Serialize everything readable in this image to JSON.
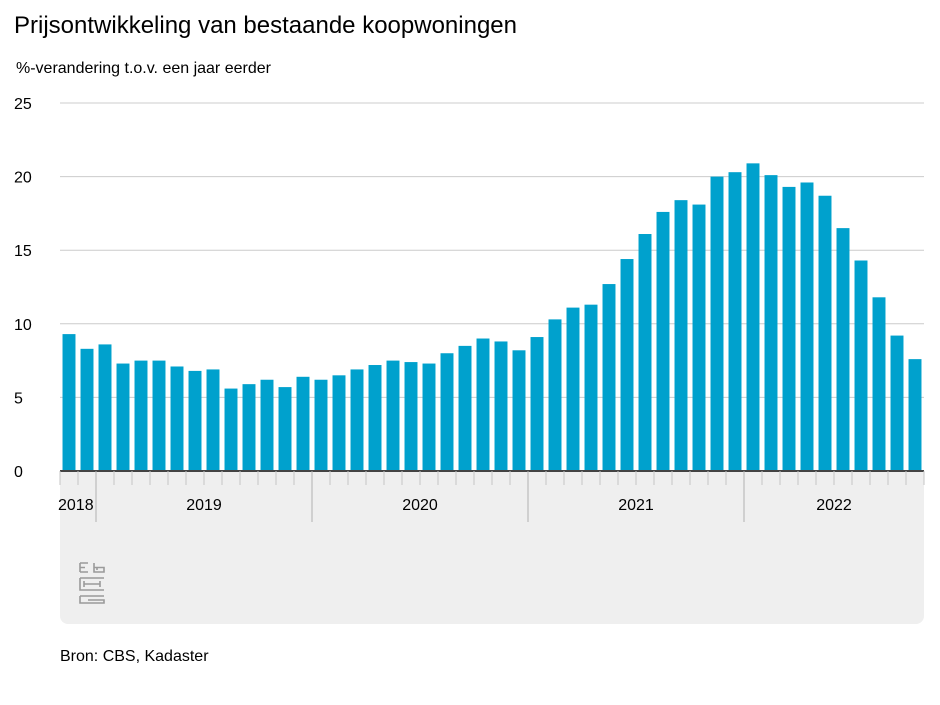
{
  "title": "Prijsontwikkeling van bestaande koopwoningen",
  "subtitle": "%-verandering t.o.v. een jaar eerder",
  "source": "Bron: CBS, Kadaster",
  "logo_text": "cbs",
  "colors": {
    "bar": "#00a1cd",
    "grid": "#cccccc",
    "axis_panel": "#efefef",
    "baseline": "#444444"
  },
  "chart_data": {
    "type": "bar",
    "title": "Prijsontwikkeling van bestaande koopwoningen",
    "ylabel": "%-verandering t.o.v. een jaar eerder",
    "ylim": [
      0,
      25
    ],
    "yticks": [
      0,
      5,
      10,
      15,
      20,
      25
    ],
    "grid": true,
    "periods": [
      "2018-11",
      "2018-12",
      "2019-01",
      "2019-02",
      "2019-03",
      "2019-04",
      "2019-05",
      "2019-06",
      "2019-07",
      "2019-08",
      "2019-09",
      "2019-10",
      "2019-11",
      "2019-12",
      "2020-01",
      "2020-02",
      "2020-03",
      "2020-04",
      "2020-05",
      "2020-06",
      "2020-07",
      "2020-08",
      "2020-09",
      "2020-10",
      "2020-11",
      "2020-12",
      "2021-01",
      "2021-02",
      "2021-03",
      "2021-04",
      "2021-05",
      "2021-06",
      "2021-07",
      "2021-08",
      "2021-09",
      "2021-10",
      "2021-11",
      "2021-12",
      "2022-01",
      "2022-02",
      "2022-03",
      "2022-04",
      "2022-05",
      "2022-06",
      "2022-07",
      "2022-08",
      "2022-09",
      "2022-10"
    ],
    "values": [
      9.3,
      8.3,
      8.6,
      7.3,
      7.5,
      7.5,
      7.1,
      6.8,
      6.9,
      5.6,
      5.9,
      6.2,
      5.7,
      6.4,
      6.2,
      6.5,
      6.9,
      7.2,
      7.5,
      7.4,
      7.3,
      8.0,
      8.5,
      9.0,
      8.8,
      8.2,
      9.1,
      10.3,
      11.1,
      11.3,
      12.7,
      14.4,
      16.1,
      17.6,
      18.4,
      18.1,
      20.0,
      20.3,
      20.9,
      20.1,
      19.3,
      19.6,
      18.7,
      16.5,
      14.3,
      11.8,
      9.2,
      7.6
    ],
    "year_labels": [
      {
        "label": "2018",
        "start": 0,
        "end": 2
      },
      {
        "label": "2019",
        "start": 2,
        "end": 14
      },
      {
        "label": "2020",
        "start": 14,
        "end": 26
      },
      {
        "label": "2021",
        "start": 26,
        "end": 38
      },
      {
        "label": "2022",
        "start": 38,
        "end": 48
      }
    ]
  }
}
